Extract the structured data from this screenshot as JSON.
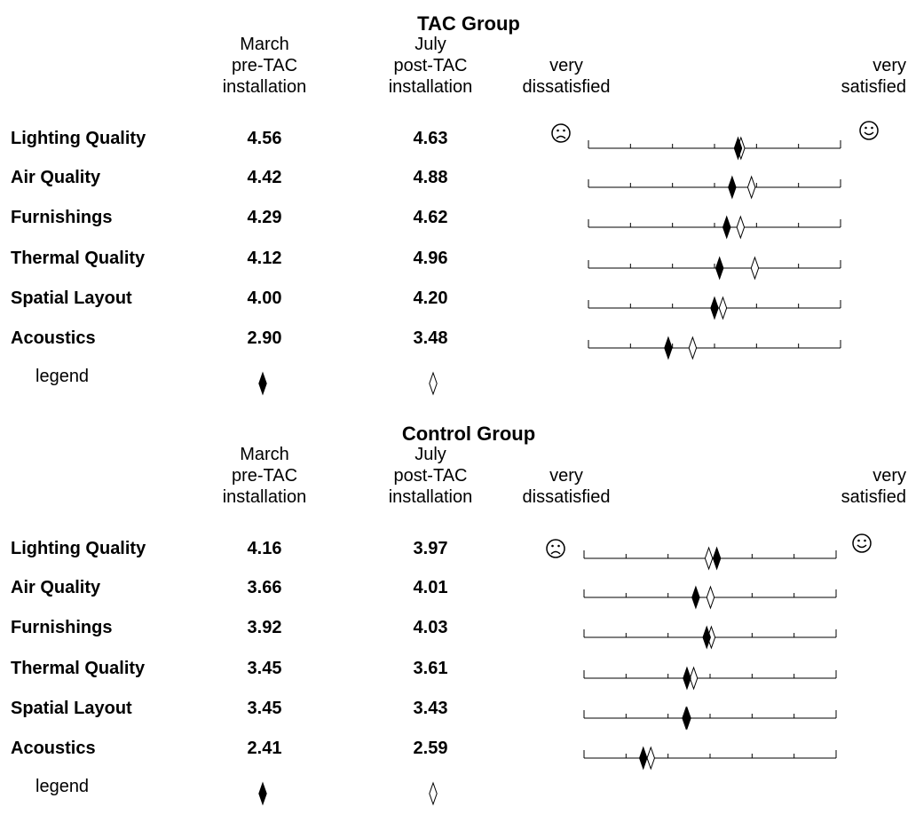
{
  "chart_data": [
    {
      "type": "dot",
      "title": "TAC Group",
      "column_headers": [
        "March\npre-TAC\ninstallation",
        "July\npost-TAC\ninstallation"
      ],
      "scale_left_label": "very\ndissatisfied",
      "scale_right_label": "very\nsatisfied",
      "left_icon": "frown-icon",
      "right_icon": "smile-icon",
      "xlim": [
        1,
        7
      ],
      "categories": [
        "Lighting Quality",
        "Air Quality",
        "Furnishings",
        "Thermal Quality",
        "Spatial Layout",
        "Acoustics"
      ],
      "series": [
        {
          "name": "March pre-TAC installation",
          "marker": "filled-diamond",
          "values": [
            4.56,
            4.42,
            4.29,
            4.12,
            4.0,
            2.9
          ],
          "labels": [
            "4.56",
            "4.42",
            "4.29",
            "4.12",
            "4.00",
            "2.90"
          ]
        },
        {
          "name": "July post-TAC installation",
          "marker": "open-diamond",
          "values": [
            4.63,
            4.88,
            4.62,
            4.96,
            4.2,
            3.48
          ],
          "labels": [
            "4.63",
            "4.88",
            "4.62",
            "4.96",
            "4.20",
            "3.48"
          ]
        }
      ],
      "legend_label": "legend"
    },
    {
      "type": "dot",
      "title": "Control Group",
      "column_headers": [
        "March\npre-TAC\ninstallation",
        "July\npost-TAC\ninstallation"
      ],
      "scale_left_label": "very\ndissatisfied",
      "scale_right_label": "very\nsatisfied",
      "left_icon": "frown-icon",
      "right_icon": "smile-icon",
      "xlim": [
        1,
        7
      ],
      "categories": [
        "Lighting Quality",
        "Air Quality",
        "Furnishings",
        "Thermal Quality",
        "Spatial Layout",
        "Acoustics"
      ],
      "series": [
        {
          "name": "March pre-TAC installation",
          "marker": "filled-diamond",
          "values": [
            4.16,
            3.66,
            3.92,
            3.45,
            3.45,
            2.41
          ],
          "labels": [
            "4.16",
            "3.66",
            "3.92",
            "3.45",
            "3.45",
            "2.41"
          ]
        },
        {
          "name": "July post-TAC installation",
          "marker": "open-diamond",
          "values": [
            3.97,
            4.01,
            4.03,
            3.61,
            3.43,
            2.59
          ],
          "labels": [
            "3.97",
            "4.01",
            "4.03",
            "3.61",
            "3.43",
            "2.59"
          ]
        }
      ],
      "legend_label": "legend"
    }
  ]
}
